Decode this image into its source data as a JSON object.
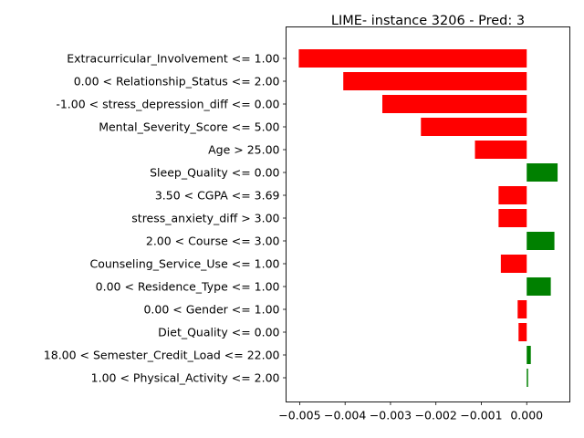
{
  "chart_data": {
    "type": "bar",
    "orientation": "horizontal",
    "title": "LIME- instance 3206 - Pred: 3",
    "xlabel": "",
    "ylabel": "",
    "xlim": [
      -0.0053,
      0.00095
    ],
    "grid": false,
    "categories": [
      "Extracurricular_Involvement <= 1.00",
      "0.00 < Relationship_Status <= 2.00",
      "-1.00 < stress_depression_diff <= 0.00",
      "Mental_Severity_Score <= 5.00",
      "Age > 25.00",
      "Sleep_Quality <= 0.00",
      "3.50 < CGPA <= 3.69",
      "stress_anxiety_diff > 3.00",
      "2.00 < Course <= 3.00",
      "Counseling_Service_Use <= 1.00",
      "0.00 < Residence_Type <= 1.00",
      "0.00 < Gender <= 1.00",
      "Diet_Quality <= 0.00",
      "18.00 < Semester_Credit_Load <= 22.00",
      "1.00 < Physical_Activity <= 2.00"
    ],
    "values": [
      -0.00502,
      -0.00404,
      -0.00318,
      -0.00233,
      -0.00114,
      0.00068,
      -0.00062,
      -0.00062,
      0.00061,
      -0.00057,
      0.00053,
      -0.0002,
      -0.00018,
      9e-05,
      3e-05
    ],
    "x_ticks": [
      "−0.005",
      "−0.004",
      "−0.003",
      "−0.002",
      "−0.001",
      "0.000"
    ],
    "x_tick_values": [
      -0.005,
      -0.004,
      -0.003,
      -0.002,
      -0.001,
      0.0
    ],
    "colors": {
      "positive": "#008000",
      "negative": "#ff0000",
      "axis": "#000000"
    }
  }
}
